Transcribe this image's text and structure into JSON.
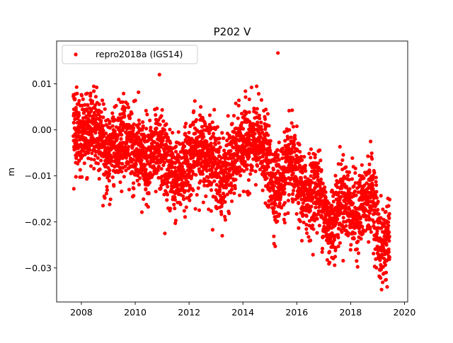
{
  "chart_data": {
    "type": "scatter",
    "title": "P202 V",
    "xlabel": "",
    "ylabel": "m",
    "xlim": [
      2007.08,
      2020.12
    ],
    "ylim": [
      -0.0374,
      0.0193
    ],
    "xticks": [
      2008,
      2010,
      2012,
      2014,
      2016,
      2018,
      2020
    ],
    "xtick_labels": [
      "2008",
      "2010",
      "2012",
      "2014",
      "2016",
      "2018",
      "2020"
    ],
    "yticks": [
      0.01,
      0.0,
      -0.01,
      -0.02,
      -0.03
    ],
    "ytick_labels": [
      "0.01",
      "0.00",
      "−0.01",
      "−0.02",
      "−0.03"
    ],
    "grid": false,
    "legend": {
      "placement": "top-left",
      "entries": [
        "repro2018a (IGS14)"
      ]
    },
    "series": [
      {
        "name": "repro2018a (IGS14)",
        "color": "#ff0000",
        "marker": "circle",
        "start": 2007.7,
        "end": 2019.45,
        "outliers": [
          {
            "x": 2015.3,
            "y": 0.0167
          },
          {
            "x": 2010.9,
            "y": 0.012
          },
          {
            "x": 2007.72,
            "y": -0.0128
          },
          {
            "x": 2019.15,
            "y": -0.0347
          },
          {
            "x": 2015.2,
            "y": -0.0253
          },
          {
            "x": 2011.1,
            "y": -0.0225
          },
          {
            "x": 2009.05,
            "y": -0.0162
          }
        ],
        "trend": [
          {
            "x": 2007.7,
            "y": -0.001
          },
          {
            "x": 2008.5,
            "y": 0.0005
          },
          {
            "x": 2009.0,
            "y": -0.005
          },
          {
            "x": 2009.7,
            "y": -0.002
          },
          {
            "x": 2010.3,
            "y": -0.006
          },
          {
            "x": 2011.0,
            "y": -0.005
          },
          {
            "x": 2011.5,
            "y": -0.011
          },
          {
            "x": 2012.3,
            "y": -0.004
          },
          {
            "x": 2012.9,
            "y": -0.006
          },
          {
            "x": 2013.2,
            "y": -0.011
          },
          {
            "x": 2014.0,
            "y": -0.003
          },
          {
            "x": 2014.7,
            "y": -0.003
          },
          {
            "x": 2015.2,
            "y": -0.013
          },
          {
            "x": 2015.8,
            "y": -0.007
          },
          {
            "x": 2016.3,
            "y": -0.015
          },
          {
            "x": 2016.8,
            "y": -0.012
          },
          {
            "x": 2017.2,
            "y": -0.022
          },
          {
            "x": 2017.7,
            "y": -0.014
          },
          {
            "x": 2018.2,
            "y": -0.019
          },
          {
            "x": 2018.8,
            "y": -0.013
          },
          {
            "x": 2019.1,
            "y": -0.026
          },
          {
            "x": 2019.45,
            "y": -0.023
          }
        ],
        "spread": 0.0042,
        "samples_per_year": 300
      }
    ]
  }
}
